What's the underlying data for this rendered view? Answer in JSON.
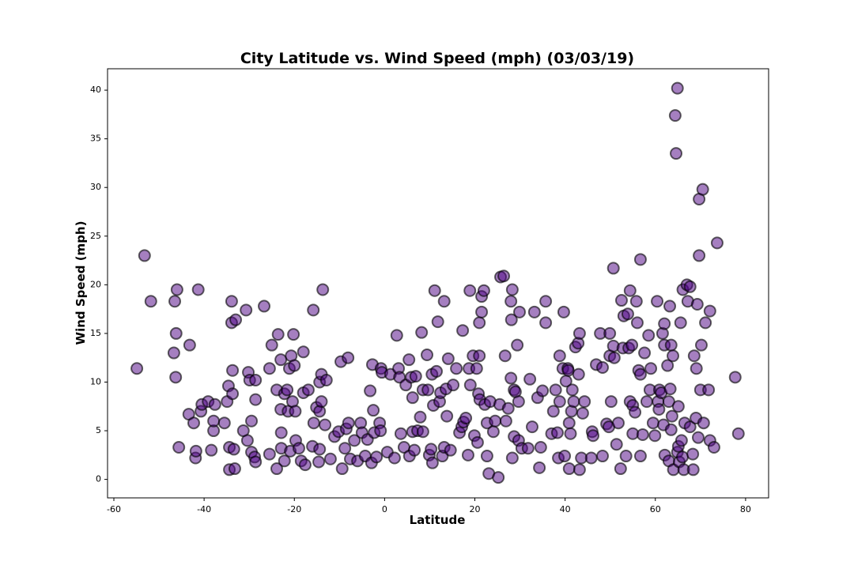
{
  "chart_data": {
    "type": "scatter",
    "title": "City Latitude vs. Wind Speed (mph) (03/03/19)",
    "x_label": "Latitude",
    "y_label": "Wind Speed (mph)",
    "color": "#4b0082",
    "edge_color": "#000000",
    "opacity": 0.5,
    "xlim": [
      -61.4,
      85.1
    ],
    "ylim": [
      -1.9,
      42.2
    ],
    "xticks": [
      -60,
      -40,
      -20,
      0,
      20,
      40,
      60,
      80
    ],
    "yticks": [
      0,
      5,
      10,
      15,
      20,
      25,
      30,
      35,
      40
    ],
    "x": [
      -54.9,
      -53.2,
      -51.8,
      -46.5,
      -46,
      -46.7,
      -46.2,
      -46.3,
      -45.6,
      -43.2,
      -43.4,
      -42.3,
      -41.9,
      -41.8,
      -41.3,
      -40.7,
      -40.5,
      -39.1,
      -38.4,
      -37.9,
      -37.9,
      -37.6,
      -35.5,
      -34.9,
      -34.6,
      -34.4,
      -34.4,
      -33.9,
      -33.9,
      -33.7,
      -33.7,
      -33,
      -33.2,
      -33.4,
      -31.3,
      -30.7,
      -30.4,
      -30.2,
      -29.9,
      -29.5,
      -29.5,
      -28.8,
      -28.6,
      -28.6,
      -28.6,
      -26.7,
      -25.5,
      -25.5,
      -25,
      -23.9,
      -23.9,
      -23.6,
      -23,
      -23,
      -22.9,
      -22.9,
      -22.2,
      -22.2,
      -21.6,
      -21.4,
      -21.1,
      -20.9,
      -20.7,
      -20.4,
      -20.2,
      -20,
      -19.8,
      -19.7,
      -19,
      -18.5,
      -18,
      -18,
      -17.6,
      -16.9,
      -16,
      -15.8,
      -15.7,
      -15.1,
      -14.6,
      -14.4,
      -14.4,
      -14.4,
      -14,
      -14,
      -13.7,
      -13.2,
      -12.9,
      -12,
      -11.1,
      -10.2,
      -9.7,
      -9.4,
      -8.8,
      -8.5,
      -8.1,
      -8,
      -7.6,
      -6.7,
      -6,
      -5.3,
      -5,
      -4.3,
      -3.8,
      -3.2,
      -2.9,
      -2.5,
      -2.7,
      -2.3,
      -1.8,
      -1.1,
      -0.8,
      -0.6,
      -0.9,
      0.6,
      1.3,
      2.2,
      2.7,
      3.1,
      3.3,
      3.6,
      4.3,
      4.7,
      5.4,
      5.5,
      5.9,
      6.2,
      6.2,
      6.6,
      6.9,
      7.3,
      7.9,
      8.2,
      8.5,
      8.5,
      9.4,
      9.6,
      9.9,
      10.3,
      10.5,
      10.6,
      10.8,
      11.1,
      11.5,
      11.8,
      12.2,
      12.4,
      12.8,
      13.2,
      13.2,
      13.6,
      13.8,
      14.1,
      14.6,
      15.2,
      15.9,
      16.6,
      17.3,
      17.1,
      17.5,
      18.0,
      18.5,
      18.7,
      18.9,
      19.0,
      19.6,
      19.9,
      20.4,
      20.6,
      20.8,
      21.0,
      21.0,
      21.1,
      21.5,
      21.5,
      22.0,
      22.2,
      22.7,
      22.7,
      23.1,
      23.4,
      24.1,
      24.5,
      25.2,
      25.5,
      25.7,
      26.4,
      26.7,
      26.9,
      27.4,
      28.0,
      28.1,
      28.0,
      28.3,
      28.3,
      28.7,
      28.7,
      29.0,
      29.4,
      29.7,
      29.9,
      29.7,
      30.4,
      31.8,
      32.2,
      32.7,
      33.2,
      33.9,
      34.3,
      34.6,
      35.0,
      35.7,
      35.7,
      37,
      37.4,
      37.9,
      38.3,
      38.5,
      38.8,
      38.8,
      39.5,
      39.7,
      39.9,
      40.2,
      40.6,
      40.7,
      40.9,
      40.9,
      41.2,
      41.4,
      41.6,
      41.9,
      42.3,
      42.9,
      43.0,
      43.2,
      43.2,
      43.6,
      43.9,
      44.3,
      45.8,
      46.0,
      46.2,
      46.9,
      47.8,
      48.3,
      48.3,
      49.2,
      49.7,
      49.9,
      49.9,
      50.2,
      50.7,
      50.7,
      50.9,
      51.4,
      51.8,
      52.3,
      52.5,
      52.8,
      53.0,
      53.5,
      53.9,
      54.1,
      54.4,
      54.4,
      54.8,
      55.0,
      55.0,
      55.5,
      55.8,
      56.0,
      56.3,
      56.7,
      56.7,
      56.7,
      57.2,
      57.6,
      58.1,
      58.5,
      58.8,
      59.0,
      59.5,
      59.9,
      60.4,
      60.6,
      60.8,
      60.9,
      61.3,
      61.6,
      61.8,
      62.0,
      62.0,
      62.1,
      62.7,
      63.0,
      63.0,
      63.2,
      63.3,
      63.5,
      63.5,
      63.7,
      63.9,
      64.0,
      64.4,
      64.6,
      64.9,
      64.9,
      65.1,
      65.1,
      65.3,
      65.6,
      65.8,
      66.0,
      66.1,
      66.3,
      66.5,
      67.0,
      67.2,
      67.7,
      67.7,
      68.3,
      68.4,
      68.6,
      69.0,
      69.1,
      69.3,
      69.5,
      69.7,
      69.7,
      70.0,
      70.2,
      70.5,
      70.7,
      71.1,
      71.8,
      72.1,
      72.1,
      73,
      73.7,
      77.7,
      78.4
    ],
    "values": [
      11.4,
      23.0,
      18.3,
      18.3,
      19.5,
      13.0,
      15.0,
      10.5,
      3.3,
      13.8,
      6.7,
      5.8,
      2.2,
      2.9,
      19.5,
      7.0,
      7.7,
      8.0,
      3.0,
      5.0,
      6.0,
      7.7,
      5.8,
      8.0,
      9.6,
      3.3,
      1.0,
      18.3,
      16.1,
      11.2,
      8.8,
      16.4,
      1.1,
      3.1,
      5.0,
      17.4,
      4.0,
      11.0,
      10.2,
      6.0,
      2.8,
      2.3,
      1.8,
      10.2,
      8.2,
      17.8,
      2.6,
      11.4,
      13.8,
      1.1,
      9.2,
      14.9,
      12.3,
      7.2,
      4.8,
      3.2,
      8.8,
      1.9,
      9.2,
      7.0,
      11.4,
      2.9,
      12.7,
      8.0,
      14.9,
      11.7,
      7.0,
      4.0,
      3.2,
      1.9,
      13.1,
      8.9,
      1.5,
      9.2,
      3.4,
      17.4,
      5.8,
      7.4,
      1.8,
      3.1,
      10.0,
      7.0,
      10.8,
      8.0,
      19.5,
      5.6,
      10.2,
      2.1,
      4.4,
      4.9,
      12.1,
      1.1,
      3.2,
      5.2,
      12.5,
      5.8,
      2.1,
      4.0,
      1.9,
      5.8,
      4.8,
      2.4,
      4.1,
      9.1,
      1.7,
      7.1,
      11.8,
      4.8,
      2.3,
      5.8,
      11.4,
      11.0,
      5.0,
      2.8,
      10.8,
      2.2,
      14.8,
      11.4,
      10.5,
      4.7,
      3.3,
      9.7,
      12.3,
      2.4,
      10.5,
      8.4,
      4.9,
      3.0,
      10.6,
      5.0,
      6.4,
      15.1,
      4.9,
      9.2,
      12.8,
      9.2,
      2.5,
      3.1,
      10.8,
      1.7,
      7.6,
      19.4,
      11.1,
      16.2,
      8.0,
      8.9,
      2.4,
      18.3,
      3.3,
      9.3,
      6.5,
      12.4,
      3.0,
      9.7,
      11.4,
      4.8,
      15.3,
      5.4,
      5.9,
      6.3,
      2.5,
      11.4,
      19.4,
      9.7,
      12.7,
      4.5,
      11.4,
      3.8,
      8.8,
      16.1,
      12.7,
      8.2,
      17.2,
      18.8,
      19.4,
      7.7,
      5.8,
      2.4,
      0.6,
      8.0,
      4.9,
      6.0,
      0.2,
      7.7,
      20.8,
      20.9,
      12.7,
      6.0,
      7.3,
      18.3,
      16.4,
      10.4,
      19.5,
      2.2,
      4.4,
      9.2,
      9.0,
      13.8,
      8.0,
      17.2,
      4.0,
      3.2,
      3.2,
      10.3,
      5.4,
      17.2,
      8.4,
      1.2,
      3.3,
      9.1,
      16.1,
      18.3,
      4.7,
      7.0,
      9.2,
      4.8,
      2.2,
      12.7,
      8.0,
      11.4,
      17.2,
      2.4,
      10.1,
      11.4,
      11.2,
      5.8,
      1.1,
      4.7,
      7.0,
      9.2,
      8.0,
      13.6,
      14.0,
      10.8,
      15.0,
      1.0,
      2.2,
      6.8,
      8.0,
      2.2,
      4.9,
      4.5,
      11.8,
      15.0,
      11.5,
      2.4,
      5.7,
      5.4,
      12.7,
      15.0,
      8.0,
      21.7,
      13.7,
      12.5,
      3.6,
      5.8,
      1.1,
      18.4,
      13.5,
      16.8,
      2.4,
      17.0,
      13.5,
      19.4,
      8.0,
      13.8,
      7.6,
      4.7,
      6.9,
      18.3,
      16.1,
      11.2,
      22.6,
      10.8,
      2.4,
      4.6,
      13.0,
      8.0,
      14.8,
      9.2,
      11.4,
      5.8,
      4.5,
      18.3,
      8.0,
      7.2,
      9.2,
      8.9,
      15.0,
      5.6,
      16.0,
      13.8,
      2.5,
      11.7,
      8.0,
      1.9,
      17.8,
      9.3,
      13.8,
      5.1,
      6.5,
      12.7,
      1.0,
      37.4,
      33.5,
      40.2,
      2.8,
      7.5,
      3.4,
      1.8,
      16.1,
      4.0,
      2.3,
      19.5,
      1.0,
      5.8,
      20.0,
      18.3,
      19.8,
      5.4,
      2.6,
      1.0,
      12.7,
      6.3,
      11.4,
      18.0,
      4.3,
      28.8,
      23.0,
      9.2,
      13.8,
      29.8,
      5.8,
      16.1,
      9.2,
      17.3,
      4.0,
      3.3,
      24.3,
      10.5,
      4.7
    ]
  }
}
